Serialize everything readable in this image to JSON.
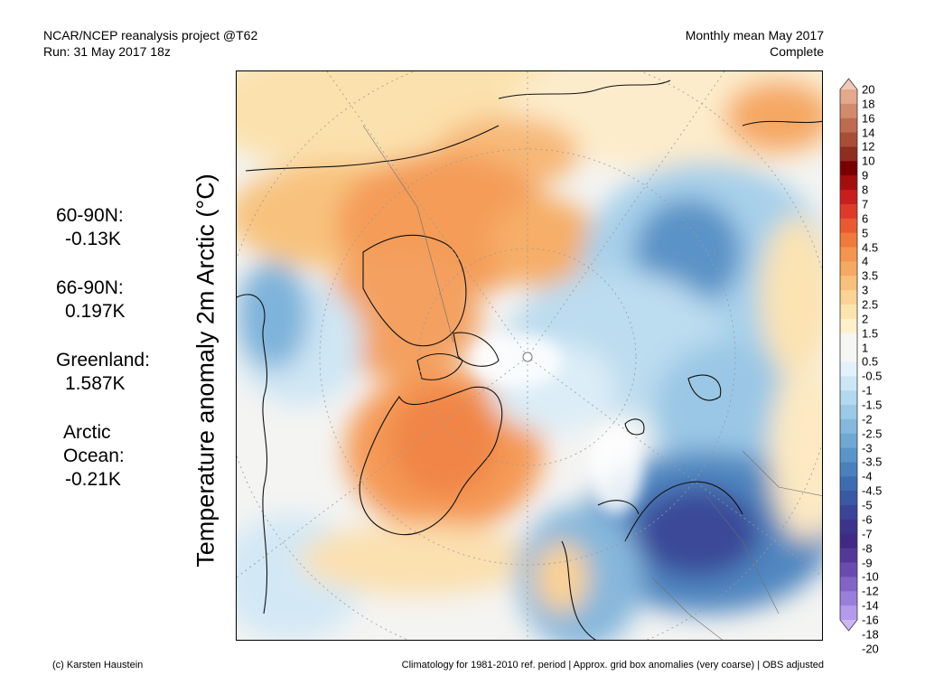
{
  "header": {
    "source": "NCAR/NCEP reanalysis project @T62",
    "run": "Run: 31 May 2017 18z",
    "period": "Monthly mean May 2017",
    "status": "Complete"
  },
  "axis_label": "Temperature anomaly 2m Arctic (°C)",
  "stats": [
    {
      "name": "60-90N:",
      "value": "-0.13K"
    },
    {
      "name": "66-90N:",
      "value": "0.197K"
    },
    {
      "name": "Greenland:",
      "value": "1.587K"
    },
    {
      "name": "Arctic Ocean:",
      "value": "-0.21K"
    }
  ],
  "colorbar": {
    "labels": [
      "20",
      "18",
      "16",
      "14",
      "12",
      "10",
      "9",
      "8",
      "7",
      "6",
      "5",
      "4.5",
      "4",
      "3.5",
      "3",
      "2.5",
      "2",
      "1.5",
      "1",
      "0.5",
      "-0.5",
      "-1",
      "-1.5",
      "-2",
      "-2.5",
      "-3",
      "-3.5",
      "-4",
      "-4.5",
      "-5",
      "-6",
      "-7",
      "-8",
      "-9",
      "-10",
      "-12",
      "-14",
      "-16",
      "-18",
      "-20"
    ],
    "colors": [
      "#f0c8b4",
      "#e2a98c",
      "#d08a6e",
      "#bf6b4f",
      "#a84e36",
      "#8f2d20",
      "#7a0000",
      "#a30f0f",
      "#c81e1e",
      "#dd3a2a",
      "#ea5a32",
      "#f07a3e",
      "#f39550",
      "#f5aa64",
      "#f8c07a",
      "#fbd394",
      "#fce4ae",
      "#fdf1cc",
      "#f6f6f4",
      "#f6f6f4",
      "#e4f1fa",
      "#cde6f5",
      "#b4d8ee",
      "#9ccae6",
      "#84b9dd",
      "#6ea8d3",
      "#5a95c8",
      "#4a80bc",
      "#3f6bb0",
      "#3a58a4",
      "#3a4498",
      "#3b338c",
      "#412a86",
      "#53389a",
      "#6a4cb0",
      "#8264c6",
      "#9a7edb",
      "#b49aea",
      "#ccb8f4"
    ]
  },
  "footer": {
    "credit": "(c) Karsten Haustein",
    "note": "Climatology for 1981-2010 ref. period | Approx. grid box anomalies (very coarse) | OBS adjusted"
  }
}
